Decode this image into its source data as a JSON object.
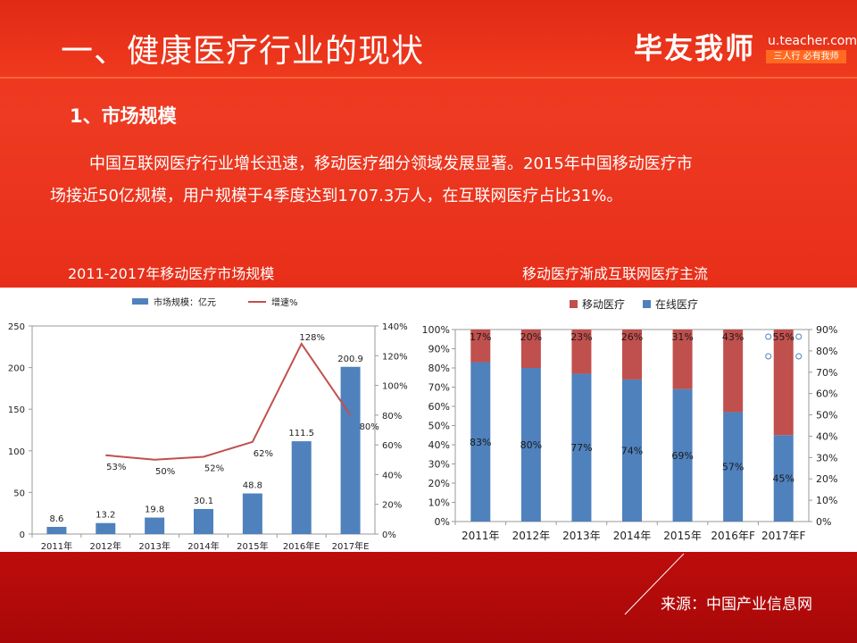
{
  "header": {
    "title": "一、健康医疗行业的现状",
    "brand": "毕友我师",
    "brand_url": "u.teacher.com",
    "brand_slogan": "三人行 必有我师"
  },
  "section": {
    "heading": "1、市场规模",
    "paragraph_line1": "中国互联网医疗行业增长迅速，移动医疗细分领域发展显著。2015年中国移动医疗市",
    "paragraph_line2": "场接近50亿规模，用户规模于4季度达到1707.3万人，在互联网医疗占比31%。"
  },
  "captions": {
    "left": "2011-2017年移动医疗市场规模",
    "right": "移动医疗渐成互联网医疗主流"
  },
  "source": "来源：中国产业信息网",
  "colors": {
    "bar_blue": "#4f81bd",
    "line_red": "#c0504d",
    "stack_red": "#c0504d",
    "stack_blue": "#4f81bd",
    "background_red": "#e8301a"
  },
  "chart_data": [
    {
      "type": "bar",
      "categories": [
        "2011年",
        "2012年",
        "2013年",
        "2014年",
        "2015年",
        "2016年E",
        "2017年E"
      ],
      "series": [
        {
          "name": "市场规模：亿元",
          "values": [
            8.6,
            13.2,
            19.8,
            30.1,
            48.8,
            111.5,
            200.9
          ],
          "axis": "left",
          "type": "bar",
          "labels": [
            "8.6",
            "13.2",
            "19.8",
            "30.1",
            "48.8",
            "111.5",
            "200.9"
          ]
        },
        {
          "name": "增速%",
          "values": [
            null,
            53,
            50,
            52,
            62,
            128,
            80
          ],
          "axis": "right",
          "type": "line",
          "labels": [
            "",
            "53%",
            "50%",
            "52%",
            "62%",
            "128%",
            "80%"
          ]
        }
      ],
      "ylim_left": [
        0,
        250
      ],
      "yticks_left": [
        "0",
        "50",
        "100",
        "150",
        "200",
        "250"
      ],
      "ylim_right": [
        0,
        140
      ],
      "yticks_right": [
        "0%",
        "20%",
        "40%",
        "60%",
        "80%",
        "100%",
        "120%",
        "140%"
      ],
      "legend_position": "top",
      "grid": false
    },
    {
      "type": "bar",
      "stacked": true,
      "categories": [
        "2011年",
        "2012年",
        "2013年",
        "2014年",
        "2015年",
        "2016年F",
        "2017年F"
      ],
      "series": [
        {
          "name": "在线医疗",
          "values": [
            83,
            80,
            77,
            74,
            69,
            57,
            45
          ],
          "labels": [
            "83%",
            "80%",
            "77%",
            "74%",
            "69%",
            "57%",
            "45%"
          ]
        },
        {
          "name": "移动医疗",
          "values": [
            17,
            20,
            23,
            26,
            31,
            43,
            55
          ],
          "labels": [
            "17%",
            "20%",
            "23%",
            "26%",
            "31%",
            "43%",
            "55%"
          ]
        }
      ],
      "ylim_left": [
        0,
        100
      ],
      "yticks_left": [
        "0%",
        "10%",
        "20%",
        "30%",
        "40%",
        "50%",
        "60%",
        "70%",
        "80%",
        "90%",
        "100%"
      ],
      "ylim_right": [
        0,
        90
      ],
      "yticks_right": [
        "0%",
        "10%",
        "20%",
        "30%",
        "40%",
        "50%",
        "60%",
        "70%",
        "80%",
        "90%"
      ],
      "legend_position": "top",
      "grid": false
    }
  ]
}
